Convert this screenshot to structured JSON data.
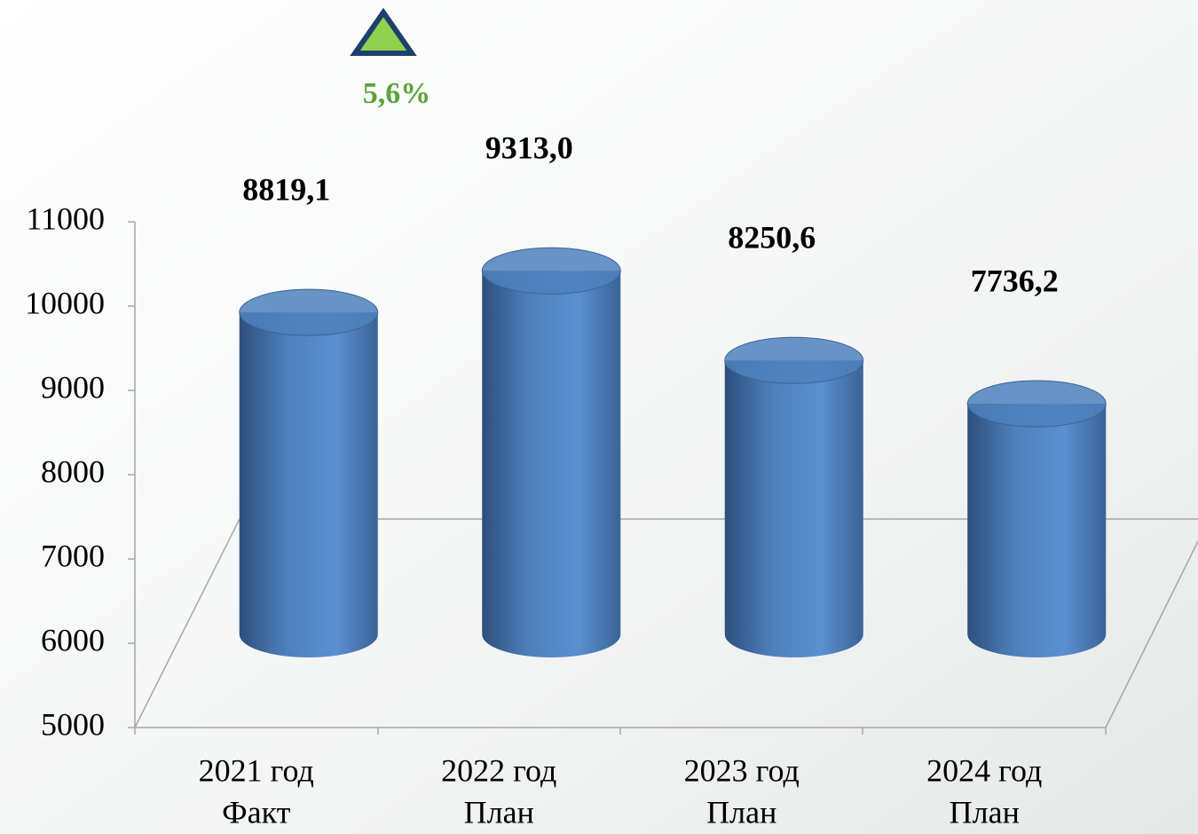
{
  "chart_data": {
    "type": "bar",
    "categories": [
      [
        "2021 год",
        "Факт"
      ],
      [
        "2022 год",
        "План"
      ],
      [
        "2023 год",
        "План"
      ],
      [
        "2024 год",
        "План"
      ]
    ],
    "values": [
      8819.1,
      9313.0,
      8250.6,
      7736.2
    ],
    "value_labels": [
      "8819,1",
      "9313,0",
      "8250,6",
      "7736,2"
    ],
    "color": "#4f81bd",
    "ylim": [
      5000,
      11000
    ],
    "yticks": [
      5000,
      6000,
      7000,
      8000,
      9000,
      10000,
      11000
    ],
    "annotation": "5,6%"
  }
}
